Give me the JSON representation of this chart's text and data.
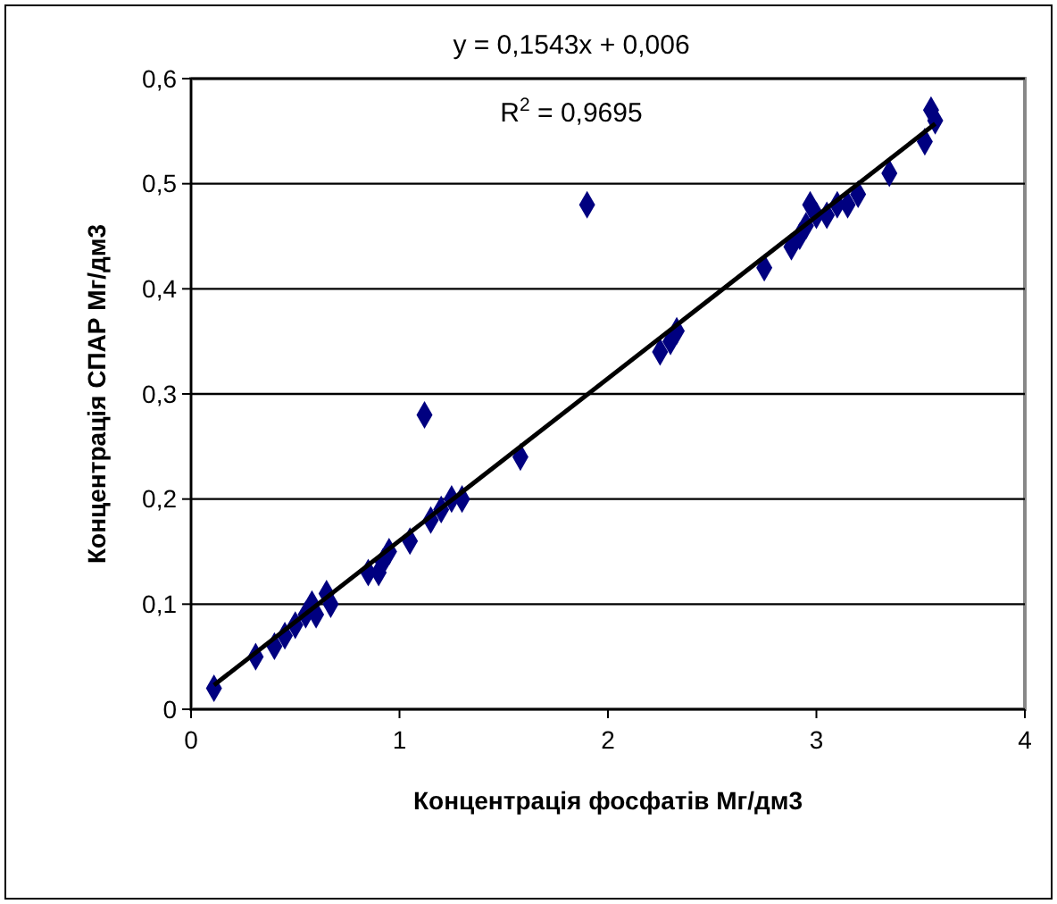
{
  "chart_data": {
    "type": "scatter",
    "xlabel": "Концентрація фосфатів Мг/дм3",
    "ylabel": "Концентрація СПАР Мг/дм3",
    "xlim": [
      0,
      4
    ],
    "xticks": [
      0,
      1,
      2,
      3,
      4
    ],
    "ylim": [
      0,
      0.6
    ],
    "yticks": [
      {
        "value": 0,
        "label": "0"
      },
      {
        "value": 0.1,
        "label": "0,1"
      },
      {
        "value": 0.2,
        "label": "0,2"
      },
      {
        "value": 0.3,
        "label": "0,3"
      },
      {
        "value": 0.4,
        "label": "0,4"
      },
      {
        "value": 0.5,
        "label": "0,5"
      },
      {
        "value": 0.6,
        "label": "0,6"
      }
    ],
    "grid": "y",
    "marker": "diamond",
    "annotations": [
      "y = 0,1543x + 0,006",
      "R$^{2}$ = 0,9695"
    ],
    "series": [
      {
        "color": "#000080",
        "x": [
          0.11,
          0.31,
          0.4,
          0.45,
          0.5,
          0.55,
          0.58,
          0.6,
          0.65,
          0.67,
          0.85,
          0.9,
          0.92,
          0.95,
          1.05,
          1.12,
          1.15,
          1.2,
          1.25,
          1.3,
          1.58,
          1.9,
          2.25,
          2.3,
          2.33,
          2.75,
          2.88,
          2.92,
          2.95,
          2.97,
          3.0,
          3.05,
          3.1,
          3.15,
          3.2,
          3.35,
          3.52,
          3.55,
          3.57
        ],
        "values": [
          0.02,
          0.05,
          0.06,
          0.07,
          0.08,
          0.09,
          0.1,
          0.09,
          0.11,
          0.1,
          0.13,
          0.13,
          0.14,
          0.15,
          0.16,
          0.28,
          0.18,
          0.19,
          0.2,
          0.2,
          0.24,
          0.48,
          0.34,
          0.35,
          0.36,
          0.42,
          0.44,
          0.45,
          0.46,
          0.48,
          0.47,
          0.47,
          0.48,
          0.48,
          0.49,
          0.51,
          0.54,
          0.57,
          0.56
        ]
      },
      {
        "type": "line",
        "color": "#000000",
        "marker": "none",
        "line_style": "solid",
        "x": [
          0.11,
          3.57
        ],
        "values": [
          0.023,
          0.557
        ]
      }
    ]
  }
}
